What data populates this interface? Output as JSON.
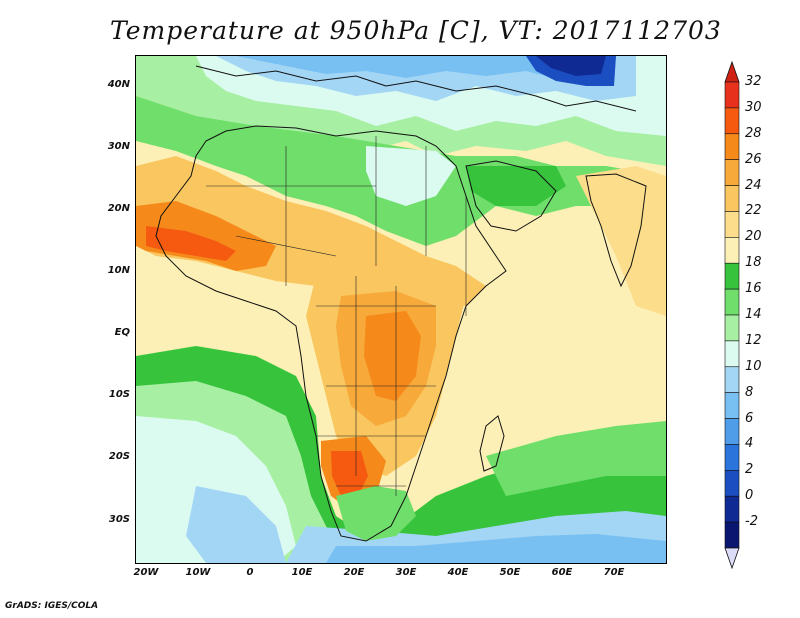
{
  "title": "Temperature at 950hPa [C], VT: 2017112703",
  "credit": "GrADS: IGES/COLA",
  "map": {
    "variable": "Temperature at 950hPa",
    "units": "C",
    "valid_time": "2017112703",
    "lat_labels": [
      "40N",
      "30N",
      "20N",
      "10N",
      "EQ",
      "10S",
      "20S",
      "30S"
    ],
    "lon_labels": [
      "20W",
      "10W",
      "0",
      "10E",
      "20E",
      "30E",
      "40E",
      "50E",
      "60E",
      "70E"
    ],
    "colorbar": {
      "levels": [
        "32",
        "30",
        "28",
        "26",
        "24",
        "22",
        "20",
        "18",
        "16",
        "14",
        "12",
        "10",
        "8",
        "6",
        "4",
        "2",
        "0",
        "-2"
      ],
      "colors": [
        "#e8311c",
        "#f55a10",
        "#f58a1b",
        "#f7a93a",
        "#f9c660",
        "#fbdd8c",
        "#fdf0b6",
        "#37c43c",
        "#6fde6b",
        "#a7efa3",
        "#dcfbf0",
        "#a3d6f5",
        "#78bff2",
        "#4f9de8",
        "#2b74db",
        "#1b4fc1",
        "#0f2a93",
        "#0a1670"
      ],
      "top_arrow_color": "#cf2214",
      "bottom_arrow_color": "#dcdcf8"
    }
  }
}
